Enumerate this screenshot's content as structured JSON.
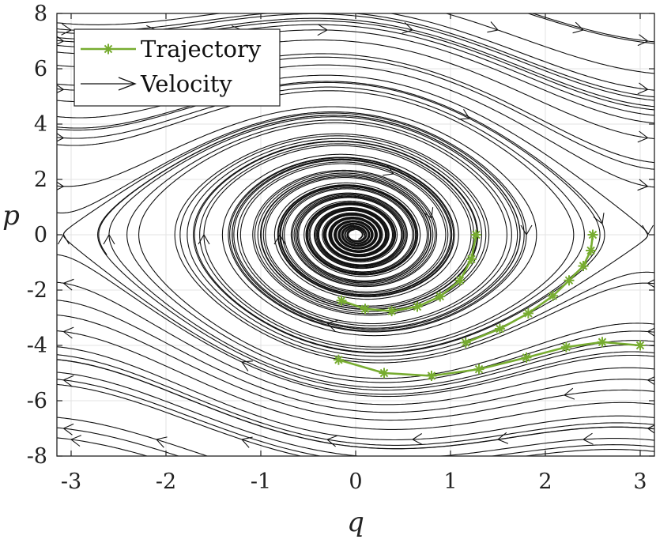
{
  "chart_data": {
    "type": "line",
    "xlabel": "q",
    "ylabel": "p",
    "xlim": [
      -3.15,
      3.15
    ],
    "ylim": [
      -8,
      8
    ],
    "xticks": [
      "-3",
      "-2",
      "-1",
      "0",
      "1",
      "2",
      "3"
    ],
    "yticks": [
      "-8",
      "-6",
      "-4",
      "-2",
      "0",
      "2",
      "4",
      "6",
      "8"
    ],
    "grid": true,
    "legend_position": "top-left",
    "legend": [
      {
        "label": "Trajectory",
        "marker": "asterisk"
      },
      {
        "label": "Velocity",
        "marker": "arrow"
      }
    ],
    "colors": {
      "trajectory": "#77ac30",
      "velocity": "#111111",
      "grid": "#e3e3e3"
    },
    "series": [
      {
        "x": [
          1.27,
          1.22,
          1.1,
          0.89,
          0.65,
          0.38,
          0.1,
          -0.15
        ],
        "y": [
          0.0,
          -0.88,
          -1.65,
          -2.23,
          -2.6,
          -2.76,
          -2.68,
          -2.38
        ]
      },
      {
        "x": [
          2.5,
          2.48,
          2.4,
          2.25,
          2.08,
          1.82,
          1.52,
          1.16
        ],
        "y": [
          0.0,
          -0.57,
          -1.13,
          -1.65,
          -2.21,
          -2.84,
          -3.4,
          -3.9
        ]
      },
      {
        "x": [
          3.0,
          2.6,
          2.22,
          1.8,
          1.3,
          0.8,
          0.3,
          -0.18
        ],
        "y": [
          -4.0,
          -3.88,
          -4.06,
          -4.44,
          -4.86,
          -5.1,
          -5.0,
          -4.52
        ]
      }
    ]
  }
}
